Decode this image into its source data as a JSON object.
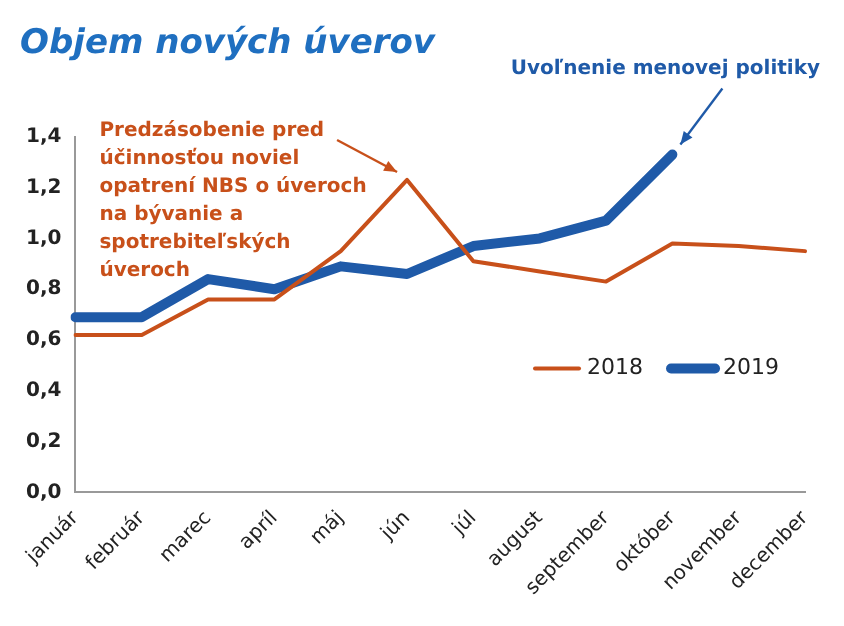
{
  "chart_data": {
    "type": "line",
    "title": "Objem nových úverov",
    "categories": [
      "január",
      "február",
      "marec",
      "apríl",
      "máj",
      "jún",
      "júl",
      "august",
      "september",
      "október",
      "november",
      "december"
    ],
    "series": [
      {
        "name": "2018",
        "color": "#c8501a",
        "values": [
          0.62,
          0.62,
          0.76,
          0.76,
          0.95,
          1.23,
          0.91,
          0.87,
          0.83,
          0.98,
          0.97,
          0.95
        ]
      },
      {
        "name": "2019",
        "color": "#1f5aa8",
        "values": [
          0.69,
          0.69,
          0.84,
          0.8,
          0.89,
          0.86,
          0.97,
          1.0,
          1.07,
          1.33,
          null,
          null
        ]
      }
    ],
    "ylim": [
      0,
      1.4
    ],
    "yticks": [
      {
        "value": 0,
        "label": "0,0"
      },
      {
        "value": 0.2,
        "label": "0,2"
      },
      {
        "value": 0.4,
        "label": "0,4"
      },
      {
        "value": 0.6,
        "label": "0,6"
      },
      {
        "value": 0.8,
        "label": "0,8"
      },
      {
        "value": 1.0,
        "label": "1,0"
      },
      {
        "value": 1.2,
        "label": "1,2"
      },
      {
        "value": 1.4,
        "label": "1,4"
      }
    ],
    "annotations": [
      {
        "text": "Predzásobenie pred účinnosťou noviel opatrení NBS o úveroch na bývanie a spotrebiteľských úveroch",
        "x": "jún",
        "y": 1.23
      },
      {
        "text": "Uvoľnenie menovej politiky",
        "x": "október",
        "y": 1.33
      }
    ],
    "grid": false,
    "legend": "bottom right",
    "marker": "none",
    "line_style": "solid"
  }
}
